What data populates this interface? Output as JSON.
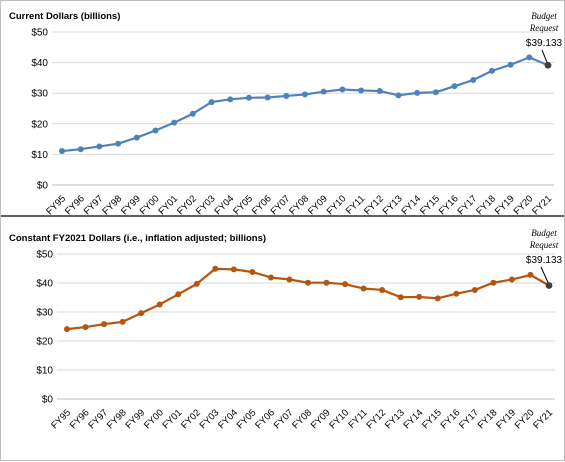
{
  "chart_data": [
    {
      "type": "line",
      "title": "Current Dollars (billions)",
      "categories": [
        "FY95",
        "FY96",
        "FY97",
        "FY98",
        "FY99",
        "FY00",
        "FY01",
        "FY02",
        "FY03",
        "FY04",
        "FY05",
        "FY06",
        "FY07",
        "FY08",
        "FY09",
        "FY10",
        "FY11",
        "FY12",
        "FY13",
        "FY14",
        "FY15",
        "FY16",
        "FY17",
        "FY18",
        "FY19",
        "FY20",
        "FY21"
      ],
      "yticks": [
        "$0",
        "$10",
        "$20",
        "$30",
        "$40",
        "$50"
      ],
      "ylim": [
        0,
        50
      ],
      "series": [
        {
          "color": "#4f81bd",
          "values": [
            11.1,
            11.7,
            12.6,
            13.5,
            15.5,
            17.8,
            20.4,
            23.3,
            27.1,
            28.0,
            28.5,
            28.6,
            29.1,
            29.6,
            30.5,
            31.2,
            30.9,
            30.7,
            29.3,
            30.1,
            30.3,
            32.3,
            34.3,
            37.3,
            39.3,
            41.7,
            39.133
          ]
        }
      ],
      "annotation": {
        "line1": "Budget",
        "line2": "Request",
        "value": "$39.133"
      }
    },
    {
      "type": "line",
      "title": "Constant FY2021 Dollars (i.e., inflation adjusted; billions)",
      "categories": [
        "FY95",
        "FY96",
        "FY97",
        "FY98",
        "FY99",
        "FY00",
        "FY01",
        "FY02",
        "FY03",
        "FY04",
        "FY05",
        "FY06",
        "FY07",
        "FY08",
        "FY09",
        "FY10",
        "FY11",
        "FY12",
        "FY13",
        "FY14",
        "FY15",
        "FY16",
        "FY17",
        "FY18",
        "FY19",
        "FY20",
        "FY21"
      ],
      "yticks": [
        "$0",
        "$10",
        "$20",
        "$30",
        "$40",
        "$50"
      ],
      "ylim": [
        0,
        50
      ],
      "series": [
        {
          "color": "#b5560f",
          "values": [
            24.1,
            24.8,
            25.8,
            26.6,
            29.6,
            32.6,
            36.1,
            39.7,
            44.9,
            44.7,
            43.8,
            41.9,
            41.2,
            40.1,
            40.1,
            39.6,
            38.1,
            37.6,
            35.1,
            35.2,
            34.7,
            36.3,
            37.6,
            40.1,
            41.2,
            42.8,
            39.133
          ]
        }
      ],
      "annotation": {
        "line1": "Budget",
        "line2": "Request",
        "value": "$39.133"
      }
    }
  ]
}
